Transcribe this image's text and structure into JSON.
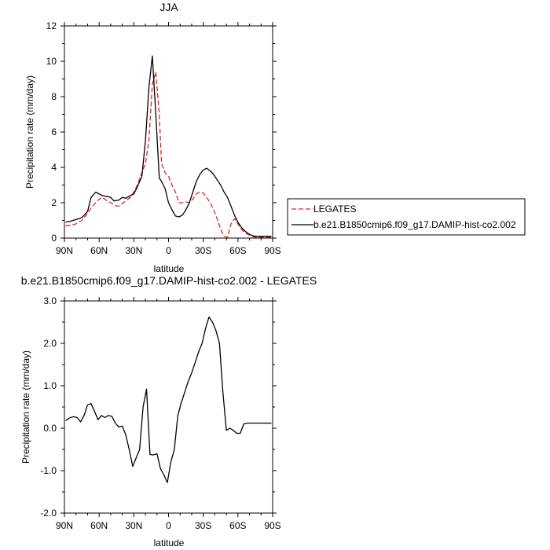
{
  "chart_data": [
    {
      "type": "line",
      "title": "JJA",
      "xlabel": "latitude",
      "ylabel": "Precipitation rate (mm/day)",
      "xlim": [
        90,
        -90
      ],
      "ylim": [
        0,
        12
      ],
      "x_ticks": [
        90,
        60,
        30,
        0,
        -30,
        -60,
        -90
      ],
      "x_tick_labels": [
        "90N",
        "60N",
        "30N",
        "0",
        "30S",
        "60S",
        "90S"
      ],
      "y_ticks": [
        0,
        2,
        4,
        6,
        8,
        10,
        12
      ],
      "y_tick_labels": [
        "0",
        "2",
        "4",
        "6",
        "8",
        "10",
        "12"
      ],
      "legend_position": "right",
      "x": [
        89,
        85,
        80,
        75,
        70,
        67,
        63,
        60,
        57,
        53,
        50,
        47,
        43,
        40,
        37,
        33,
        30,
        27,
        23,
        20,
        17,
        14,
        11,
        8,
        6,
        3,
        0,
        -3,
        -6,
        -9,
        -12,
        -15,
        -18,
        -21,
        -24,
        -27,
        -30,
        -33,
        -36,
        -39,
        -42,
        -45,
        -48,
        -51,
        -54,
        -57,
        -60,
        -63,
        -66,
        -69,
        -72,
        -75,
        -78,
        -81,
        -84,
        -87,
        -89
      ],
      "series": [
        {
          "name": "LEGATES",
          "color": "#e8201c",
          "dash": "dashed",
          "values": [
            0.7,
            0.72,
            0.8,
            1.0,
            1.4,
            1.7,
            2.0,
            2.2,
            2.3,
            2.1,
            2.0,
            1.85,
            1.8,
            1.95,
            2.1,
            2.3,
            2.6,
            3.0,
            3.7,
            4.2,
            5.5,
            8.7,
            9.4,
            7.0,
            4.2,
            3.7,
            3.5,
            3.0,
            2.6,
            2.0,
            2.0,
            2.05,
            2.0,
            2.2,
            2.5,
            2.6,
            2.55,
            2.3,
            2.0,
            1.6,
            1.1,
            0.5,
            0.1,
            0.05,
            0.8,
            1.1,
            0.8,
            0.5,
            0.3,
            0.2,
            0.1,
            0.05,
            0.05,
            0.05,
            0.05,
            0.05,
            0.05
          ]
        },
        {
          "name": "b.e21.B1850cmip6.f09_g17.DAMIP-hist-co2.002",
          "color": "#000000",
          "dash": "solid",
          "values": [
            0.9,
            0.95,
            1.05,
            1.15,
            1.5,
            2.3,
            2.6,
            2.5,
            2.4,
            2.35,
            2.3,
            2.1,
            2.15,
            2.3,
            2.25,
            2.4,
            2.5,
            2.9,
            3.5,
            5.5,
            8.5,
            10.3,
            7.0,
            3.4,
            3.2,
            2.8,
            2.0,
            1.6,
            1.25,
            1.2,
            1.3,
            1.6,
            2.0,
            2.6,
            3.2,
            3.6,
            3.85,
            3.95,
            3.8,
            3.6,
            3.3,
            3.0,
            2.6,
            2.3,
            1.8,
            1.3,
            0.9,
            0.6,
            0.4,
            0.25,
            0.15,
            0.1,
            0.1,
            0.1,
            0.1,
            0.1,
            0.1
          ]
        }
      ]
    },
    {
      "type": "line",
      "title": "b.e21.B1850cmip6.f09_g17.DAMIP-hist-co2.002 - LEGATES",
      "xlabel": "latitude",
      "ylabel": "Precipitation rate (mm/day)",
      "xlim": [
        90,
        -90
      ],
      "ylim": [
        -2.0,
        3.0
      ],
      "x_ticks": [
        90,
        60,
        30,
        0,
        -30,
        -60,
        -90
      ],
      "x_tick_labels": [
        "90N",
        "60N",
        "30N",
        "0",
        "30S",
        "60S",
        "90S"
      ],
      "y_ticks": [
        -2.0,
        -1.0,
        0.0,
        1.0,
        2.0,
        3.0
      ],
      "y_tick_labels": [
        "-2.0",
        "-1.0",
        "0.0",
        "1.0",
        "2.0",
        "3.0"
      ],
      "x": [
        89,
        85,
        82,
        79,
        76,
        73,
        70,
        67,
        64,
        61,
        58,
        55,
        52,
        49,
        46,
        43,
        40,
        37,
        34,
        31,
        28,
        25,
        22,
        19,
        16,
        13,
        10,
        7,
        4,
        1,
        -2,
        -5,
        -8,
        -11,
        -14,
        -17,
        -20,
        -23,
        -26,
        -29,
        -32,
        -35,
        -38,
        -41,
        -44,
        -47,
        -50,
        -53,
        -56,
        -59,
        -62,
        -65,
        -68,
        -71,
        -74,
        -77,
        -80,
        -83,
        -86,
        -89
      ],
      "series": [
        {
          "color": "#000000",
          "values": [
            0.18,
            0.25,
            0.27,
            0.25,
            0.15,
            0.3,
            0.55,
            0.58,
            0.4,
            0.2,
            0.3,
            0.25,
            0.3,
            0.28,
            0.12,
            0.03,
            0.05,
            -0.15,
            -0.5,
            -0.9,
            -0.7,
            -0.5,
            0.5,
            0.92,
            -0.62,
            -0.63,
            -0.6,
            -0.95,
            -1.1,
            -1.28,
            -0.8,
            -0.5,
            0.3,
            0.6,
            0.85,
            1.1,
            1.3,
            1.55,
            1.8,
            2.0,
            2.35,
            2.62,
            2.5,
            2.3,
            2.0,
            0.85,
            -0.05,
            0.0,
            -0.05,
            -0.12,
            -0.12,
            0.1,
            0.12,
            0.12,
            0.12,
            0.12,
            0.12,
            0.12,
            0.12,
            0.12
          ]
        }
      ]
    }
  ]
}
